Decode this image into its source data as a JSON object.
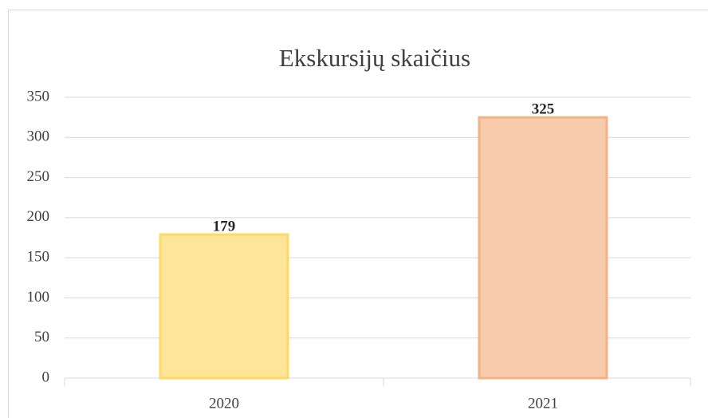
{
  "chart_data": {
    "type": "bar",
    "title": "Ekskursijų skaičius",
    "categories": [
      "2020",
      "2021"
    ],
    "values": [
      179,
      325
    ],
    "colors": [
      "#fee599",
      "#f8cbad"
    ],
    "edge_colors": [
      "#ffd966",
      "#f4b183"
    ],
    "ylim": [
      0,
      350
    ],
    "yticks": [
      0,
      50,
      100,
      150,
      200,
      250,
      300,
      350
    ],
    "grid": true
  }
}
